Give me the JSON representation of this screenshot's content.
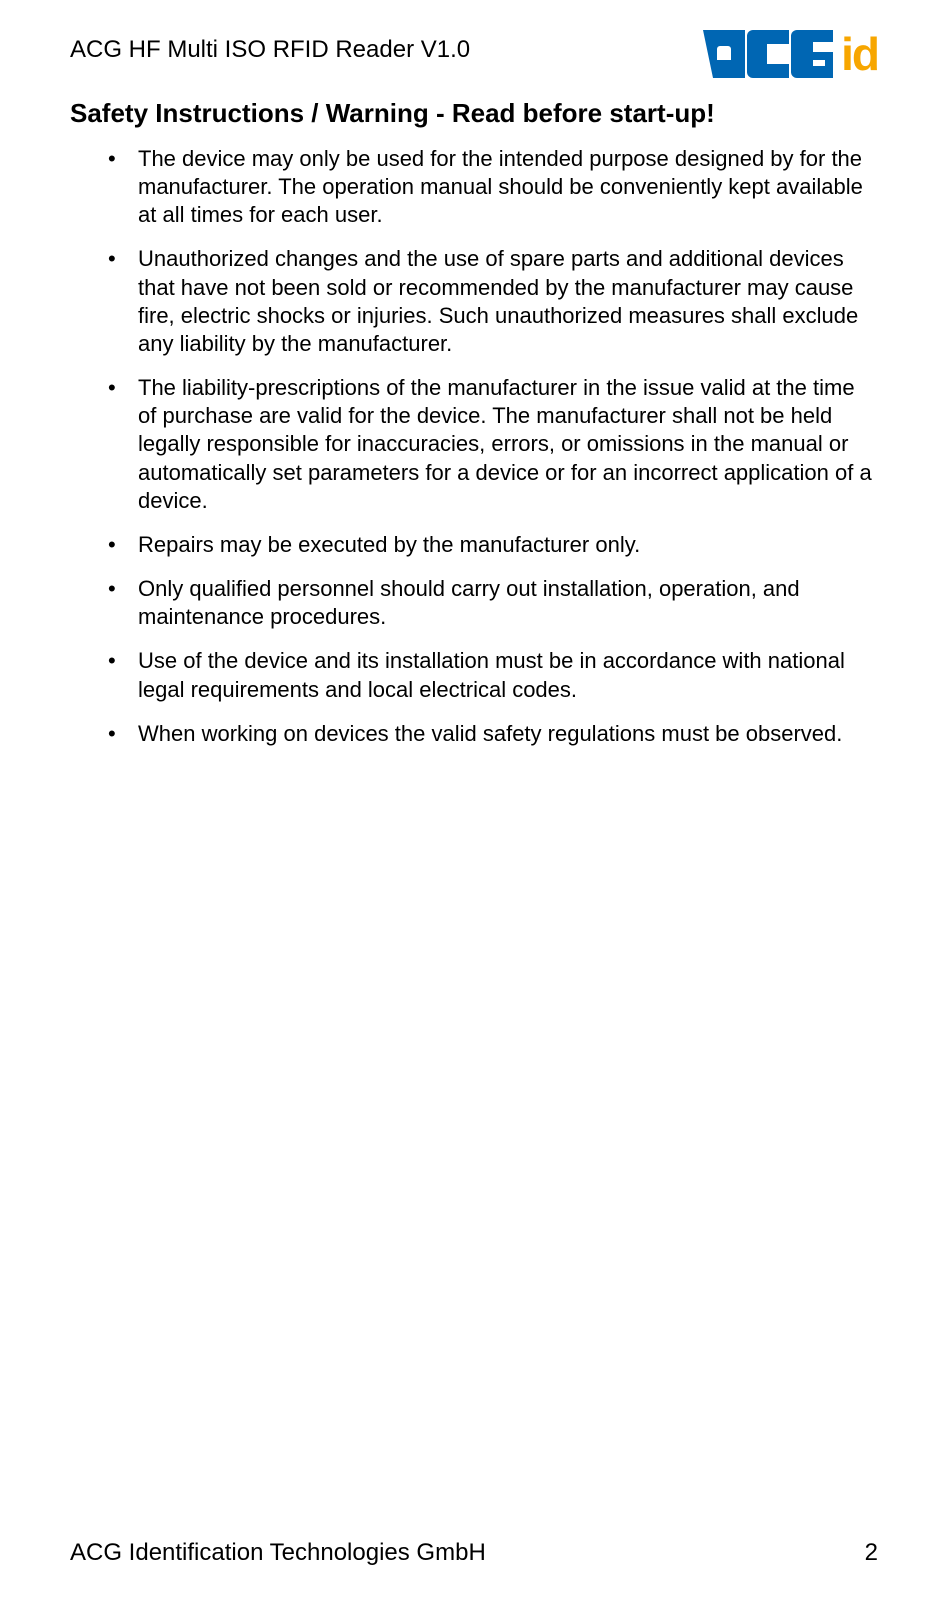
{
  "header": {
    "title": "ACG HF Multi ISO RFID Reader V1.0",
    "logo": {
      "main": "ACG",
      "suffix": "id"
    }
  },
  "heading": "Safety Instructions / Warning - Read before start-up!",
  "bullets": [
    "The device may only be used for the intended purpose designed by for the manufacturer. The operation manual should be conveniently kept available at all times for each user.",
    "Unauthorized changes and the use of spare parts and additional devices that have not been sold or recommended by the manufacturer may cause fire, electric shocks or injuries. Such unauthorized measures shall exclude any liability by the manufacturer.",
    "The liability-prescriptions of the manufacturer in the issue valid at the time of purchase are valid for the device. The manufacturer shall not be held legally responsible for inaccuracies, errors, or omissions in the manual or automatically set parameters for a device or for an incorrect application of a device.",
    "Repairs may be executed by the manufacturer only.",
    "Only qualified personnel should carry out installation, operation, and maintenance procedures.",
    "Use of the device and its installation must be in accordance with national legal requirements and local electrical codes.",
    "When working on devices the valid safety regulations must be observed."
  ],
  "footer": {
    "company": "ACG Identification Technologies GmbH",
    "page": "2"
  },
  "colors": {
    "logo_blue": "#0066b3",
    "logo_orange": "#f7a600",
    "text": "#000000",
    "background": "#ffffff"
  },
  "typography": {
    "body_font": "Arial",
    "header_title_size_pt": 18,
    "heading_size_pt": 20,
    "bullet_size_pt": 16,
    "footer_size_pt": 18
  }
}
